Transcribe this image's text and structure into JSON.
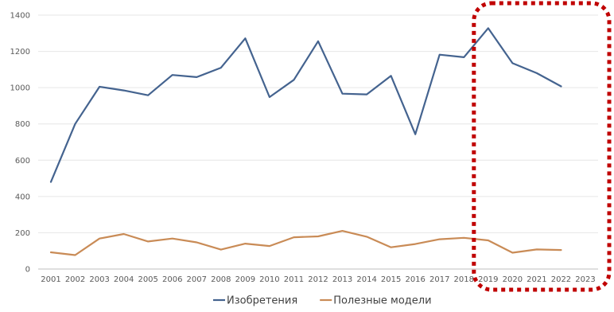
{
  "chart_data": {
    "type": "line",
    "title": "",
    "xlabel": "",
    "ylabel": "",
    "categories": [
      "2001",
      "2002",
      "2003",
      "2004",
      "2005",
      "2006",
      "2007",
      "2008",
      "2009",
      "2010",
      "2011",
      "2012",
      "2013",
      "2014",
      "2015",
      "2016",
      "2017",
      "2018",
      "2019",
      "2020",
      "2021",
      "2022",
      "2023"
    ],
    "ylim": [
      0,
      1400
    ],
    "yticks": [
      "0",
      "200",
      "400",
      "600",
      "800",
      "1000",
      "1200",
      "1400"
    ],
    "grid": true,
    "legend_position": "bottom",
    "series": [
      {
        "name": "Изобретения",
        "color": "#44638f",
        "values": [
          480,
          800,
          1005,
          985,
          958,
          1070,
          1058,
          1110,
          1272,
          948,
          1043,
          1256,
          967,
          963,
          1065,
          743,
          1182,
          1168,
          1328,
          1135,
          1080,
          1007,
          null
        ]
      },
      {
        "name": "Полезные модели",
        "color": "#c98b56",
        "values": [
          92,
          77,
          168,
          193,
          152,
          168,
          147,
          107,
          140,
          127,
          175,
          180,
          210,
          178,
          120,
          138,
          164,
          172,
          158,
          90,
          108,
          105,
          null
        ]
      }
    ],
    "highlight": {
      "from_category": "2019",
      "to_category": "2023",
      "color": "#c00000",
      "style": "dotted"
    }
  }
}
